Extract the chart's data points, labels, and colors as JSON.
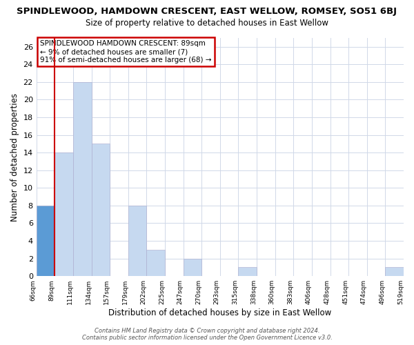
{
  "title": "SPINDLEWOOD, HAMDOWN CRESCENT, EAST WELLOW, ROMSEY, SO51 6BJ",
  "subtitle": "Size of property relative to detached houses in East Wellow",
  "xlabel": "Distribution of detached houses by size in East Wellow",
  "ylabel": "Number of detached properties",
  "bin_labels": [
    "66sqm",
    "89sqm",
    "111sqm",
    "134sqm",
    "157sqm",
    "179sqm",
    "202sqm",
    "225sqm",
    "247sqm",
    "270sqm",
    "293sqm",
    "315sqm",
    "338sqm",
    "360sqm",
    "383sqm",
    "406sqm",
    "428sqm",
    "451sqm",
    "474sqm",
    "496sqm",
    "519sqm"
  ],
  "bar_values": [
    8,
    14,
    22,
    15,
    0,
    8,
    3,
    0,
    2,
    0,
    0,
    1,
    0,
    0,
    0,
    0,
    0,
    0,
    0,
    1,
    0
  ],
  "bar_color": "#c6d9f0",
  "highlight_bar_index": 0,
  "highlight_bar_color": "#5b9bd5",
  "ylim": [
    0,
    27
  ],
  "yticks": [
    0,
    2,
    4,
    6,
    8,
    10,
    12,
    14,
    16,
    18,
    20,
    22,
    24,
    26
  ],
  "annotation_text": "SPINDLEWOOD HAMDOWN CRESCENT: 89sqm\n← 9% of detached houses are smaller (7)\n91% of semi-detached houses are larger (68) →",
  "annotation_box_color": "#ffffff",
  "annotation_box_edge_color": "#cc0000",
  "footer_line1": "Contains HM Land Registry data © Crown copyright and database right 2024.",
  "footer_line2": "Contains public sector information licensed under the Open Government Licence v3.0.",
  "background_color": "#ffffff",
  "grid_color": "#d0d8e8",
  "highlight_line_color": "#cc0000"
}
